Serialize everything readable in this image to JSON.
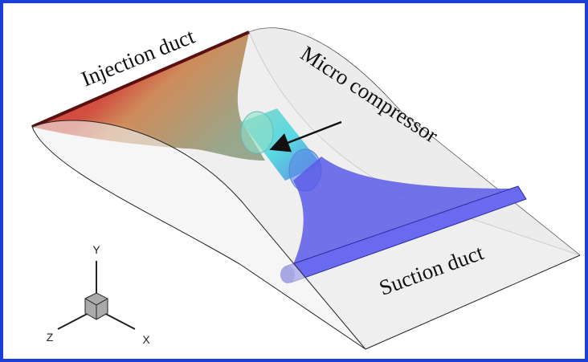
{
  "labels": {
    "injection": "Injection duct",
    "compressor": "Micro compressor",
    "suction": "Suction duct"
  },
  "axes": {
    "y": "Y",
    "z": "Z",
    "x": "X"
  }
}
